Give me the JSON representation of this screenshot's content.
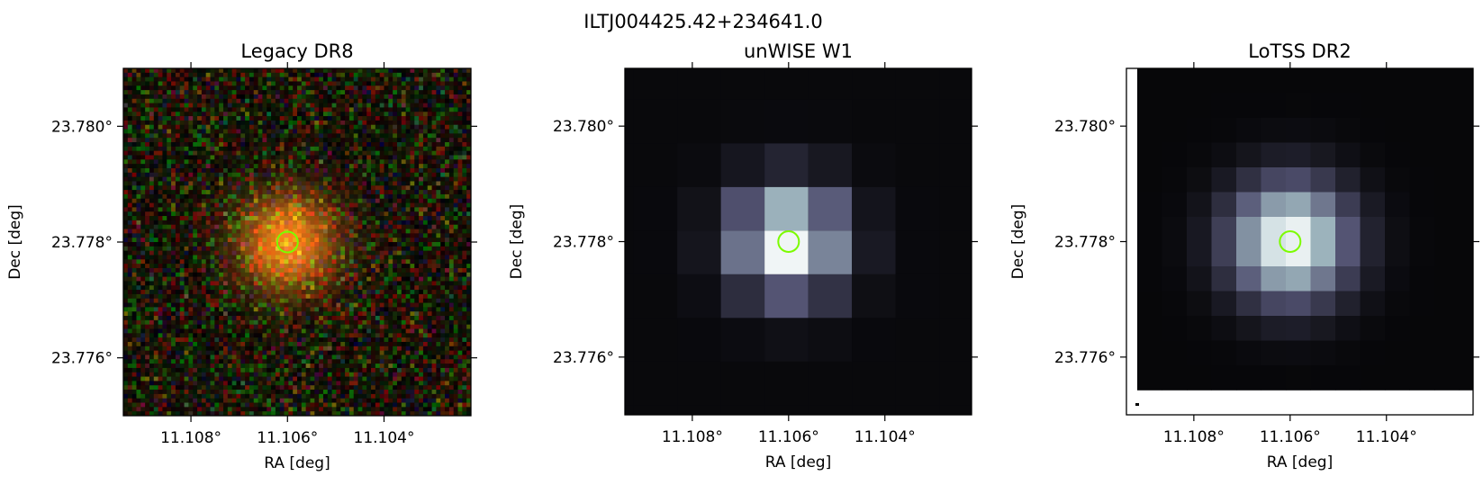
{
  "figure": {
    "title": "ILTJ004425.42+234641.0"
  },
  "chart_data": [
    {
      "type": "heatmap",
      "title": "Legacy DR8",
      "colormap": "rgb-composite",
      "xlabel": "RA [deg]",
      "ylabel": "Dec [deg]",
      "xlim": [
        11.1094,
        11.1022
      ],
      "ylim": [
        23.775,
        23.781
      ],
      "x_ticks": [
        11.108,
        11.106,
        11.104
      ],
      "x_tick_labels": [
        "11.108°",
        "11.106°",
        "11.104°"
      ],
      "y_ticks": [
        23.78,
        23.778,
        23.776
      ],
      "y_tick_labels": [
        "23.780°",
        "23.778°",
        "23.776°"
      ],
      "marker": {
        "shape": "circle",
        "ra": 11.106,
        "dec": 23.778,
        "color": "#7cfc00"
      }
    },
    {
      "type": "heatmap",
      "title": "unWISE W1",
      "colormap": "bone",
      "xlabel": "RA [deg]",
      "ylabel": "Dec [deg]",
      "xlim": [
        11.1094,
        11.1022
      ],
      "ylim": [
        23.775,
        23.781
      ],
      "x_ticks": [
        11.108,
        11.106,
        11.104
      ],
      "x_tick_labels": [
        "11.108°",
        "11.106°",
        "11.104°"
      ],
      "y_ticks": [
        23.78,
        23.778,
        23.776
      ],
      "y_tick_labels": [
        "23.780°",
        "23.778°",
        "23.776°"
      ],
      "marker": {
        "shape": "circle",
        "ra": 11.106,
        "dec": 23.778,
        "color": "#7cfc00"
      }
    },
    {
      "type": "heatmap",
      "title": "LoTSS DR2",
      "colormap": "bone",
      "xlabel": "RA [deg]",
      "ylabel": "Dec [deg]",
      "xlim": [
        11.1094,
        11.1022
      ],
      "ylim": [
        23.775,
        23.781
      ],
      "x_ticks": [
        11.108,
        11.106,
        11.104
      ],
      "x_tick_labels": [
        "11.108°",
        "11.106°",
        "11.104°"
      ],
      "y_ticks": [
        23.78,
        23.778,
        23.776
      ],
      "y_tick_labels": [
        "23.780°",
        "23.778°",
        "23.776°"
      ],
      "marker": {
        "shape": "circle",
        "ra": 11.106,
        "dec": 23.778,
        "color": "#7cfc00"
      }
    }
  ]
}
